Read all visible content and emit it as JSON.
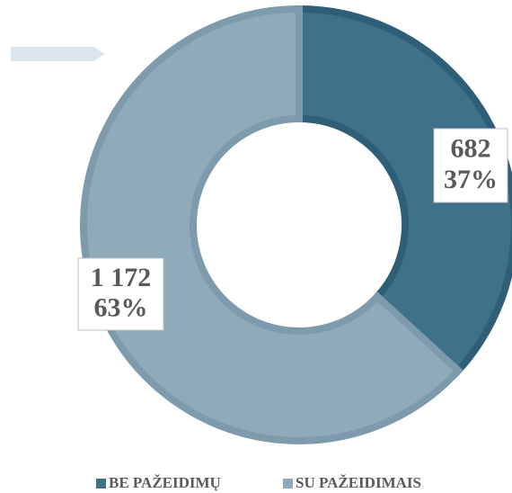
{
  "chart_data": {
    "type": "donut",
    "categories": [
      "BE PAŽEIDIMŲ",
      "SU PAŽEIDIMAIS"
    ],
    "values": [
      682,
      1172
    ],
    "value_labels": [
      "682",
      "1 172"
    ],
    "percents": [
      37,
      63
    ],
    "percent_labels": [
      "37%",
      "63%"
    ],
    "colors": [
      "#3f7189",
      "#8eaabb"
    ],
    "legend": "bottom"
  }
}
